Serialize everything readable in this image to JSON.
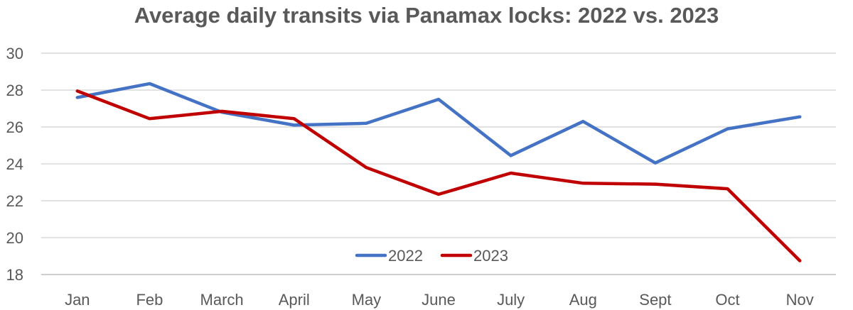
{
  "chart_data": {
    "type": "line",
    "title": "Average daily transits via Panamax locks: 2022 vs. 2023",
    "categories": [
      "Jan",
      "Feb",
      "March",
      "April",
      "May",
      "June",
      "July",
      "Aug",
      "Sept",
      "Oct",
      "Nov"
    ],
    "series": [
      {
        "name": "2022",
        "color": "#4472C4",
        "values": [
          27.6,
          28.35,
          26.8,
          26.1,
          26.2,
          27.5,
          24.45,
          26.3,
          24.05,
          25.9,
          26.55
        ]
      },
      {
        "name": "2023",
        "color": "#C00000",
        "values": [
          27.95,
          26.45,
          26.85,
          26.45,
          23.8,
          22.35,
          23.5,
          22.95,
          22.9,
          22.65,
          18.75
        ]
      }
    ],
    "ylim": [
      18,
      30
    ],
    "yticks": [
      18,
      20,
      22,
      24,
      26,
      28,
      30
    ],
    "xlabel": "",
    "ylabel": "",
    "grid": true,
    "legend": "bottom-center"
  }
}
